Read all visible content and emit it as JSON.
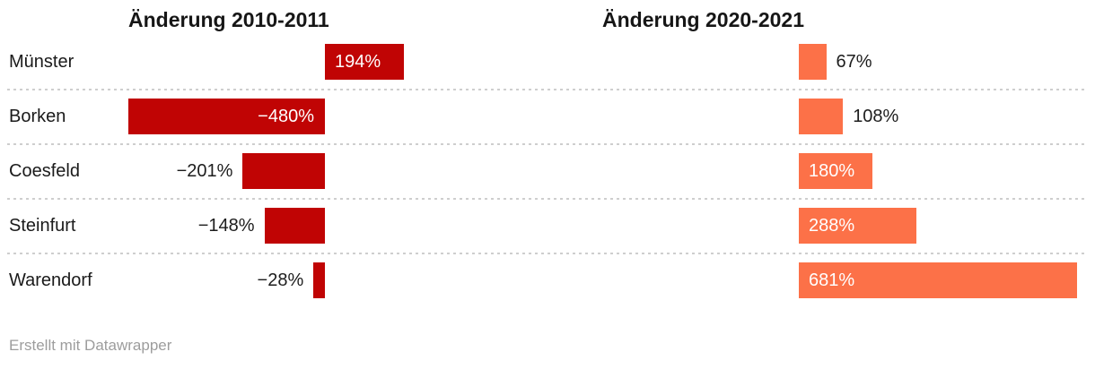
{
  "chart_data": {
    "type": "bar",
    "orientation": "horizontal",
    "categories": [
      "Münster",
      "Borken",
      "Coesfeld",
      "Steinfurt",
      "Warendorf"
    ],
    "series": [
      {
        "name": "Änderung 2010-2011",
        "values": [
          194,
          -480,
          -201,
          -148,
          -28
        ],
        "value_labels": [
          "194%",
          "−480%",
          "−201%",
          "−148%",
          "−28%"
        ],
        "label_inside": [
          true,
          true,
          false,
          false,
          false
        ],
        "color": "#c00404"
      },
      {
        "name": "Änderung 2020-2021",
        "values": [
          67,
          108,
          180,
          288,
          681
        ],
        "value_labels": [
          "67%",
          "108%",
          "180%",
          "288%",
          "681%"
        ],
        "label_inside": [
          false,
          false,
          true,
          true,
          true
        ],
        "color": "#fc7148"
      }
    ],
    "value_suffix": "%",
    "xlim": [
      -480,
      681
    ],
    "legend": "none",
    "grid": "dotted-row-separators",
    "inside_label_color": "#ffffff",
    "outside_label_color": "#1d1d1d",
    "separator_color": "#cecece"
  },
  "footer": {
    "text": "Erstellt mit Datawrapper"
  }
}
